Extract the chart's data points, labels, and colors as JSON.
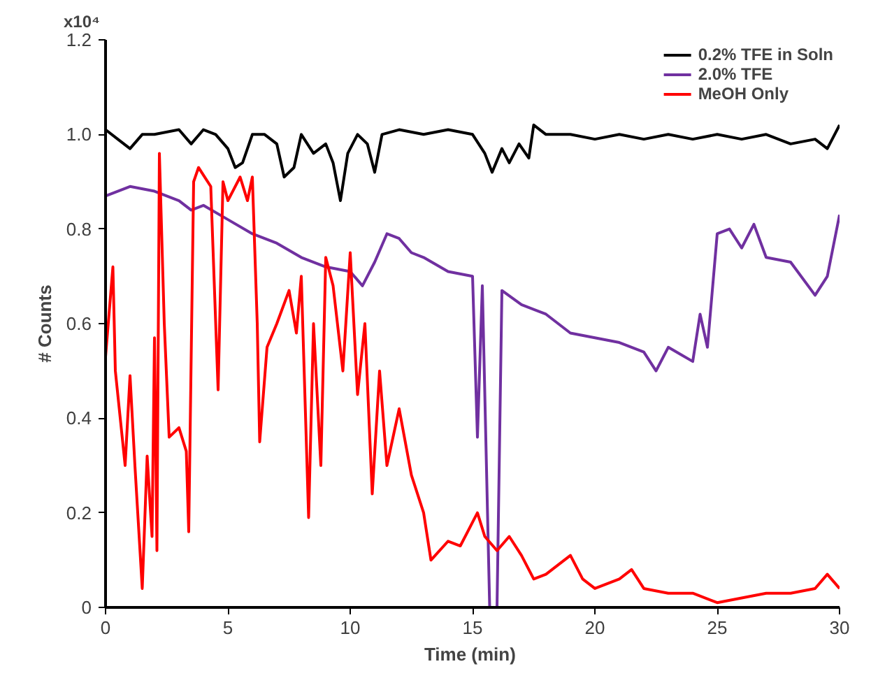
{
  "chart_data": {
    "type": "line",
    "xlabel": "Time  (min)",
    "ylabel": "# Counts",
    "annotations": [
      "x10⁴"
    ],
    "xlim": [
      0,
      30
    ],
    "xticks": [
      0,
      5,
      10,
      15,
      20,
      25,
      30
    ],
    "ylim": [
      0,
      1.2
    ],
    "yticks": [
      0,
      {
        "value": 0.2,
        "label": "0.2"
      },
      {
        "value": 0.4,
        "label": "0.4"
      },
      {
        "value": 0.6,
        "label": "0.6"
      },
      {
        "value": 0.8,
        "label": "0.8"
      },
      {
        "value": 1.0,
        "label": "1.0"
      },
      {
        "value": 1.2,
        "label": "1.2"
      }
    ],
    "grid": false,
    "legend": "top right",
    "line_style": "solid",
    "series": [
      {
        "name": "0.2% TFE in Soln",
        "color": "#000000",
        "x": [
          0,
          0.5,
          1,
          1.5,
          2,
          3,
          3.5,
          4,
          4.5,
          5,
          5.3,
          5.6,
          6,
          6.5,
          7,
          7.3,
          7.7,
          8,
          8.5,
          9,
          9.3,
          9.6,
          9.9,
          10.3,
          10.7,
          11,
          11.3,
          12,
          13,
          14,
          15,
          15.5,
          15.8,
          16.2,
          16.5,
          16.9,
          17.3,
          17.5,
          18,
          19,
          20,
          21,
          22,
          23,
          24,
          25,
          26,
          27,
          28,
          29,
          29.5,
          30
        ],
        "values": [
          1.01,
          0.99,
          0.97,
          1.0,
          1.0,
          1.01,
          0.98,
          1.01,
          1.0,
          0.97,
          0.93,
          0.94,
          1.0,
          1.0,
          0.98,
          0.91,
          0.93,
          1.0,
          0.96,
          0.98,
          0.94,
          0.86,
          0.96,
          1.0,
          0.98,
          0.92,
          1.0,
          1.01,
          1.0,
          1.01,
          1.0,
          0.96,
          0.92,
          0.97,
          0.94,
          0.98,
          0.95,
          1.02,
          1.0,
          1.0,
          0.99,
          1.0,
          0.99,
          1.0,
          0.99,
          1.0,
          0.99,
          1.0,
          0.98,
          0.99,
          0.97,
          1.02
        ]
      },
      {
        "name": "2.0% TFE",
        "color": "#7030a0",
        "x": [
          0,
          1,
          2,
          3,
          3.5,
          4,
          5,
          6,
          7,
          8,
          9,
          10,
          10.5,
          11,
          11.5,
          12,
          12.5,
          13,
          14,
          15,
          15.2,
          15.4,
          15.7,
          16.0,
          16.2,
          17,
          18,
          19,
          20,
          21,
          22,
          22.5,
          23,
          24,
          24.3,
          24.6,
          25,
          25.5,
          26,
          26.5,
          27,
          28,
          29,
          29.5,
          30
        ],
        "values": [
          0.87,
          0.89,
          0.88,
          0.86,
          0.84,
          0.85,
          0.82,
          0.79,
          0.77,
          0.74,
          0.72,
          0.71,
          0.68,
          0.73,
          0.79,
          0.78,
          0.75,
          0.74,
          0.71,
          0.7,
          0.36,
          0.68,
          0.0,
          0.0,
          0.67,
          0.64,
          0.62,
          0.58,
          0.57,
          0.56,
          0.54,
          0.5,
          0.55,
          0.52,
          0.62,
          0.55,
          0.79,
          0.8,
          0.76,
          0.81,
          0.74,
          0.73,
          0.66,
          0.7,
          0.83
        ]
      },
      {
        "name": "MeOH Only",
        "color": "#ff0000",
        "x": [
          0,
          0.3,
          0.4,
          0.8,
          1,
          1.2,
          1.5,
          1.7,
          1.9,
          2.0,
          2.1,
          2.2,
          2.4,
          2.6,
          3,
          3.3,
          3.4,
          3.6,
          3.8,
          4.3,
          4.6,
          4.8,
          5,
          5.5,
          5.8,
          6.0,
          6.2,
          6.3,
          6.6,
          7,
          7.5,
          7.8,
          8,
          8.3,
          8.5,
          8.8,
          9,
          9.3,
          9.7,
          10,
          10.3,
          10.6,
          10.9,
          11.2,
          11.5,
          12,
          12.5,
          13,
          13.3,
          14,
          14.5,
          15,
          15.2,
          15.5,
          16,
          16.5,
          17,
          17.5,
          18,
          19,
          19.5,
          20,
          21,
          21.5,
          22,
          23,
          24,
          25,
          26,
          27,
          28,
          29,
          29.5,
          30
        ],
        "values": [
          0.53,
          0.72,
          0.5,
          0.3,
          0.49,
          0.3,
          0.04,
          0.32,
          0.15,
          0.57,
          0.12,
          0.96,
          0.6,
          0.36,
          0.38,
          0.33,
          0.16,
          0.9,
          0.93,
          0.89,
          0.46,
          0.9,
          0.86,
          0.91,
          0.86,
          0.91,
          0.6,
          0.35,
          0.55,
          0.6,
          0.67,
          0.58,
          0.7,
          0.19,
          0.6,
          0.3,
          0.74,
          0.68,
          0.5,
          0.75,
          0.45,
          0.6,
          0.24,
          0.5,
          0.3,
          0.42,
          0.28,
          0.2,
          0.1,
          0.14,
          0.13,
          0.18,
          0.2,
          0.15,
          0.12,
          0.15,
          0.11,
          0.06,
          0.07,
          0.11,
          0.06,
          0.04,
          0.06,
          0.08,
          0.04,
          0.03,
          0.03,
          0.01,
          0.02,
          0.03,
          0.03,
          0.04,
          0.07,
          0.04
        ]
      }
    ]
  }
}
